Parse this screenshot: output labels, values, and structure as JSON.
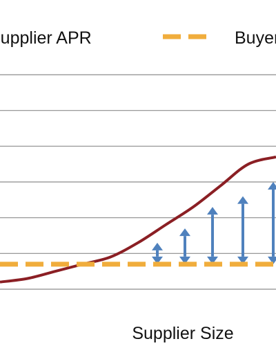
{
  "chart_data": {
    "type": "line",
    "xlabel": "Supplier Size",
    "ylabel": "",
    "title": "",
    "grid": true,
    "legend_placement": "top",
    "x_range": [
      0,
      1
    ],
    "y_range": [
      0,
      6
    ],
    "gridlines_y": [
      0,
      1,
      2,
      3,
      4,
      5,
      6
    ],
    "series": [
      {
        "name": "Supplier APR",
        "style": "solid",
        "color": "#8b1f24",
        "x": [
          0.0,
          0.1,
          0.2,
          0.3,
          0.4,
          0.5,
          0.6,
          0.7,
          0.8,
          0.9,
          1.0
        ],
        "y": [
          0.2,
          0.3,
          0.5,
          0.7,
          0.9,
          1.3,
          1.8,
          2.3,
          2.9,
          3.5,
          3.7
        ]
      },
      {
        "name": "Buyer",
        "style": "dashed",
        "color": "#f0ad3c",
        "x": [
          0.0,
          1.0
        ],
        "y": [
          0.7,
          0.7
        ]
      }
    ],
    "spread_arrows": {
      "color": "#4f81bd",
      "x": [
        0.57,
        0.67,
        0.77,
        0.88,
        0.99
      ],
      "y_from": [
        0.7,
        0.7,
        0.7,
        0.7,
        0.7
      ],
      "y_to": [
        1.3,
        1.7,
        2.3,
        2.6,
        3.0
      ]
    }
  }
}
